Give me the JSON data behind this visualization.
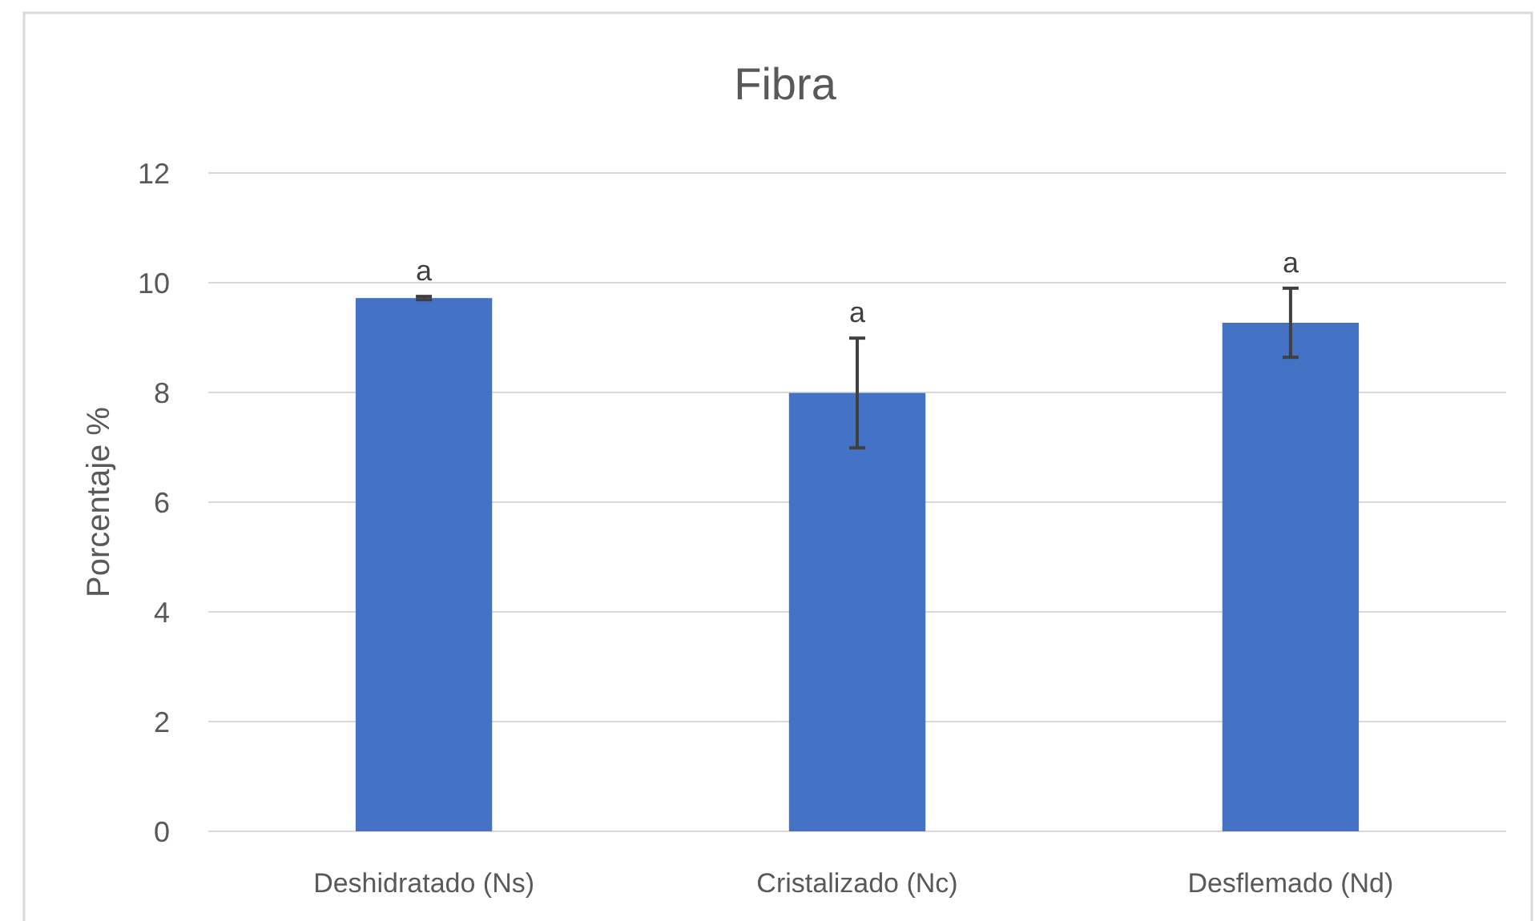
{
  "chart_data": {
    "type": "bar",
    "title": "Fibra",
    "ylabel": "Porcentaje %",
    "categories": [
      "Deshidratado (Ns)",
      "Cristalizado (Nc)",
      "Desflemado (Nd)"
    ],
    "values": [
      9.72,
      7.99,
      9.27
    ],
    "errors": [
      0.03,
      1.0,
      0.63
    ],
    "color": "#4472c4",
    "ylim": [
      0,
      12
    ],
    "yticks": [
      0,
      2,
      4,
      6,
      8,
      10,
      12
    ],
    "grid": "y",
    "annotations": [
      "a",
      "a",
      "a"
    ]
  }
}
